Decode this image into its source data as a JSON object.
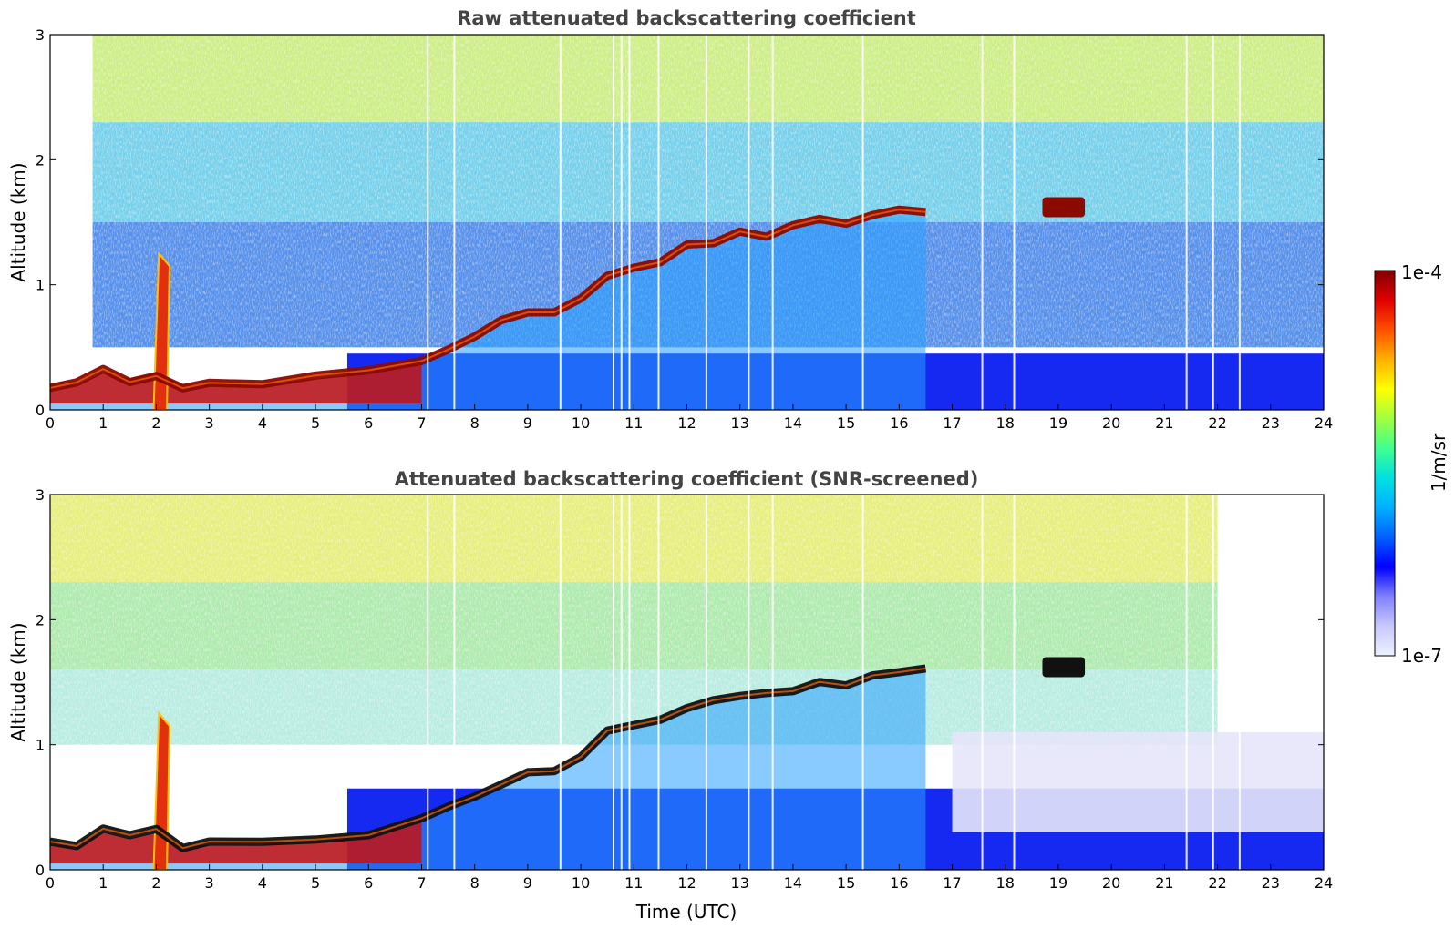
{
  "chart_data": [
    {
      "type": "heatmap",
      "title": "Raw attenuated backscattering coefficient",
      "xlabel": "",
      "ylabel": "Altitude (km)",
      "xlim": [
        0,
        24
      ],
      "ylim": [
        0,
        3
      ],
      "x_ticks": [
        "0",
        "1",
        "2",
        "3",
        "4",
        "5",
        "6",
        "7",
        "8",
        "9",
        "10",
        "11",
        "12",
        "13",
        "14",
        "15",
        "16",
        "17",
        "18",
        "19",
        "20",
        "21",
        "22",
        "23",
        "24"
      ],
      "y_ticks": [
        "0",
        "1",
        "2",
        "3"
      ],
      "colorscale": "jet",
      "layer_top_km": {
        "time_utc": [
          0,
          0.5,
          1,
          1.5,
          2,
          2.5,
          3,
          4,
          5,
          6,
          7,
          7.5,
          8,
          8.5,
          9,
          9.5,
          10,
          10.5,
          11,
          11.5,
          12,
          12.5,
          13,
          13.5,
          14,
          14.5,
          15,
          15.5,
          16,
          16.5
        ],
        "altitude_km": [
          0.2,
          0.2,
          0.3,
          0.25,
          0.3,
          0.2,
          0.2,
          0.2,
          0.25,
          0.3,
          0.4,
          0.5,
          0.6,
          0.7,
          0.75,
          0.8,
          0.9,
          1.1,
          1.15,
          1.2,
          1.3,
          1.35,
          1.4,
          1.4,
          1.45,
          1.5,
          1.5,
          1.55,
          1.6,
          1.6
        ]
      },
      "upper_cloud": {
        "time_utc": [
          18.7,
          19.5
        ],
        "altitude_km": 1.62
      },
      "plume": {
        "time_utc": 2.1,
        "top_km": 1.25
      }
    },
    {
      "type": "heatmap",
      "title": "Attenuated backscattering coefficient (SNR-screened)",
      "xlabel": "Time (UTC)",
      "ylabel": "Altitude (km)",
      "xlim": [
        0,
        24
      ],
      "ylim": [
        0,
        3
      ],
      "x_ticks": [
        "0",
        "1",
        "2",
        "3",
        "4",
        "5",
        "6",
        "7",
        "8",
        "9",
        "10",
        "11",
        "12",
        "13",
        "14",
        "15",
        "16",
        "17",
        "18",
        "19",
        "20",
        "21",
        "22",
        "23",
        "24"
      ],
      "y_ticks": [
        "0",
        "1",
        "2",
        "3"
      ],
      "colorscale": "jet",
      "layer_top_km": {
        "time_utc": [
          0,
          0.5,
          1,
          1.5,
          2,
          2.5,
          3,
          4,
          5,
          6,
          7,
          7.5,
          8,
          8.5,
          9,
          9.5,
          10,
          10.5,
          11,
          11.5,
          12,
          12.5,
          13,
          13.5,
          14,
          14.5,
          15,
          15.5,
          16,
          16.5
        ],
        "altitude_km": [
          0.2,
          0.2,
          0.3,
          0.25,
          0.3,
          0.2,
          0.2,
          0.2,
          0.25,
          0.3,
          0.4,
          0.5,
          0.6,
          0.7,
          0.75,
          0.8,
          0.9,
          1.1,
          1.15,
          1.2,
          1.3,
          1.35,
          1.4,
          1.4,
          1.45,
          1.5,
          1.5,
          1.55,
          1.6,
          1.6
        ]
      },
      "upper_cloud": {
        "time_utc": [
          18.7,
          19.5
        ],
        "altitude_km": 1.62
      },
      "plume": {
        "time_utc": 2.1,
        "top_km": 1.25
      }
    }
  ],
  "colorbar": {
    "max_label": "1e-4",
    "min_label": "1e-7",
    "unit_label": "1/m/sr",
    "colors": [
      "#f0f0ff",
      "#c8c8ff",
      "#8080ff",
      "#0000ff",
      "#0060ff",
      "#00b0ff",
      "#00e0e0",
      "#40ff90",
      "#a0ff40",
      "#ffff00",
      "#ffb000",
      "#ff5000",
      "#e00000",
      "#800000"
    ]
  }
}
